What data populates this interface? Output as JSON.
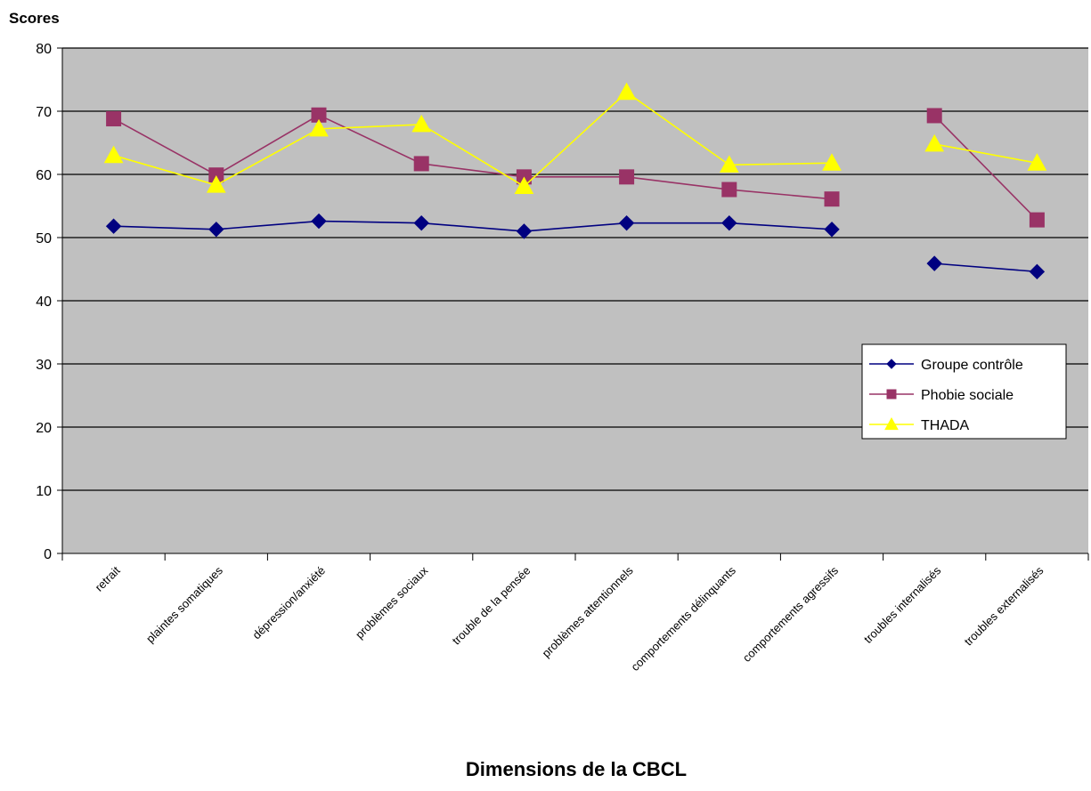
{
  "chart_data": {
    "type": "line",
    "title": "",
    "ylabel": "Scores",
    "xlabel": "Dimensions de la CBCL",
    "ylim": [
      0,
      80
    ],
    "yticks": [
      0,
      10,
      20,
      30,
      40,
      50,
      60,
      70,
      80
    ],
    "grid": true,
    "legend_position": "right",
    "plot_background": "#c0c0c0",
    "categories": [
      "retrait",
      "plaintes somatiques",
      "dépression/anxiété",
      "problèmes sociaux",
      "trouble de la pensée",
      "problèmes attentionnels",
      "comportements délinquants",
      "comportements agressifs",
      "troubles internalisés",
      "troubles externalisés"
    ],
    "series": [
      {
        "name": "Groupe contrôle",
        "color": "#000080",
        "marker": "diamond",
        "values": [
          51.8,
          51.3,
          52.6,
          52.3,
          51.0,
          52.3,
          52.3,
          51.3,
          45.9,
          44.6
        ]
      },
      {
        "name": "Phobie sociale",
        "color": "#993366",
        "marker": "square",
        "values": [
          68.8,
          59.9,
          69.4,
          61.7,
          59.6,
          59.6,
          57.6,
          56.1,
          69.3,
          52.8
        ]
      },
      {
        "name": "THADA",
        "color": "#ffff00",
        "marker": "triangle",
        "values": [
          63.0,
          58.3,
          67.2,
          67.9,
          58.1,
          73.0,
          61.5,
          61.8,
          64.8,
          61.8
        ]
      }
    ],
    "segments_broken_before": [
      8
    ]
  }
}
